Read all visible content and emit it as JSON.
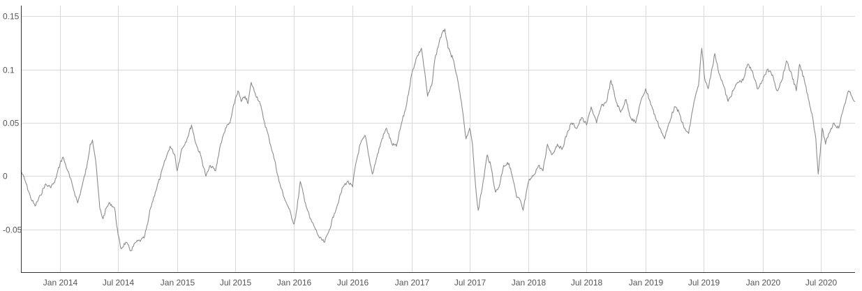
{
  "chart_data": {
    "type": "line",
    "title": "",
    "xlabel": "",
    "ylabel": "",
    "grid": true,
    "legend": "none",
    "x_range": [
      "2013-09-01",
      "2020-10-15"
    ],
    "ylim": [
      -0.09,
      0.16
    ],
    "y_ticks": [
      {
        "value": 0.15,
        "label": "0.15"
      },
      {
        "value": 0.1,
        "label": "0.1"
      },
      {
        "value": 0.05,
        "label": "0.05"
      },
      {
        "value": 0,
        "label": "0"
      },
      {
        "value": -0.05,
        "label": "-0.05"
      }
    ],
    "x_ticks": [
      {
        "date": "2014-01-01",
        "label": "Jan 2014"
      },
      {
        "date": "2014-07-01",
        "label": "Jul 2014"
      },
      {
        "date": "2015-01-01",
        "label": "Jan 2015"
      },
      {
        "date": "2015-07-01",
        "label": "Jul 2015"
      },
      {
        "date": "2016-01-01",
        "label": "Jan 2016"
      },
      {
        "date": "2016-07-01",
        "label": "Jul 2016"
      },
      {
        "date": "2017-01-01",
        "label": "Jan 2017"
      },
      {
        "date": "2017-07-01",
        "label": "Jul 2017"
      },
      {
        "date": "2018-01-01",
        "label": "Jan 2018"
      },
      {
        "date": "2018-07-01",
        "label": "Jul 2018"
      },
      {
        "date": "2019-01-01",
        "label": "Jan 2019"
      },
      {
        "date": "2019-07-01",
        "label": "Jul 2019"
      },
      {
        "date": "2020-01-01",
        "label": "Jan 2020"
      },
      {
        "date": "2020-07-01",
        "label": "Jul 2020"
      }
    ],
    "series": [
      {
        "color": "#8c8c8c",
        "points": [
          [
            "2013-09-01",
            0.005
          ],
          [
            "2013-09-15",
            -0.005
          ],
          [
            "2013-10-01",
            -0.02
          ],
          [
            "2013-10-15",
            -0.028
          ],
          [
            "2013-11-01",
            -0.018
          ],
          [
            "2013-11-15",
            -0.008
          ],
          [
            "2013-12-01",
            -0.01
          ],
          [
            "2013-12-15",
            -0.006
          ],
          [
            "2014-01-01",
            0.012
          ],
          [
            "2014-01-10",
            0.018
          ],
          [
            "2014-01-25",
            0.005
          ],
          [
            "2014-02-10",
            -0.01
          ],
          [
            "2014-02-25",
            -0.025
          ],
          [
            "2014-03-10",
            -0.01
          ],
          [
            "2014-03-25",
            0.008
          ],
          [
            "2014-04-05",
            0.03
          ],
          [
            "2014-04-12",
            0.034
          ],
          [
            "2014-04-22",
            0.015
          ],
          [
            "2014-05-05",
            -0.03
          ],
          [
            "2014-05-15",
            -0.04
          ],
          [
            "2014-05-25",
            -0.03
          ],
          [
            "2014-06-05",
            -0.025
          ],
          [
            "2014-06-20",
            -0.03
          ],
          [
            "2014-07-01",
            -0.055
          ],
          [
            "2014-07-10",
            -0.068
          ],
          [
            "2014-07-25",
            -0.062
          ],
          [
            "2014-08-10",
            -0.07
          ],
          [
            "2014-08-25",
            -0.062
          ],
          [
            "2014-09-10",
            -0.06
          ],
          [
            "2014-09-20",
            -0.058
          ],
          [
            "2014-10-01",
            -0.045
          ],
          [
            "2014-10-10",
            -0.03
          ],
          [
            "2014-10-25",
            -0.015
          ],
          [
            "2014-11-10",
            0.0
          ],
          [
            "2014-11-25",
            0.015
          ],
          [
            "2014-12-10",
            0.028
          ],
          [
            "2014-12-25",
            0.02
          ],
          [
            "2015-01-01",
            0.005
          ],
          [
            "2015-01-15",
            0.025
          ],
          [
            "2015-02-01",
            0.035
          ],
          [
            "2015-02-15",
            0.048
          ],
          [
            "2015-03-01",
            0.03
          ],
          [
            "2015-03-15",
            0.02
          ],
          [
            "2015-04-01",
            0.0
          ],
          [
            "2015-04-15",
            0.01
          ],
          [
            "2015-05-01",
            0.005
          ],
          [
            "2015-05-15",
            0.028
          ],
          [
            "2015-06-01",
            0.045
          ],
          [
            "2015-06-15",
            0.05
          ],
          [
            "2015-07-01",
            0.072
          ],
          [
            "2015-07-10",
            0.08
          ],
          [
            "2015-07-20",
            0.07
          ],
          [
            "2015-08-01",
            0.075
          ],
          [
            "2015-08-10",
            0.068
          ],
          [
            "2015-08-20",
            0.088
          ],
          [
            "2015-09-01",
            0.078
          ],
          [
            "2015-09-15",
            0.07
          ],
          [
            "2015-10-01",
            0.05
          ],
          [
            "2015-10-15",
            0.035
          ],
          [
            "2015-11-01",
            0.015
          ],
          [
            "2015-11-15",
            -0.005
          ],
          [
            "2015-12-01",
            -0.02
          ],
          [
            "2015-12-15",
            -0.03
          ],
          [
            "2016-01-01",
            -0.045
          ],
          [
            "2016-01-10",
            -0.03
          ],
          [
            "2016-01-20",
            -0.005
          ],
          [
            "2016-02-05",
            -0.025
          ],
          [
            "2016-02-20",
            -0.04
          ],
          [
            "2016-03-05",
            -0.048
          ],
          [
            "2016-03-20",
            -0.058
          ],
          [
            "2016-04-05",
            -0.062
          ],
          [
            "2016-04-20",
            -0.05
          ],
          [
            "2016-05-05",
            -0.035
          ],
          [
            "2016-05-20",
            -0.022
          ],
          [
            "2016-06-01",
            -0.01
          ],
          [
            "2016-06-15",
            -0.005
          ],
          [
            "2016-07-01",
            -0.01
          ],
          [
            "2016-07-10",
            0.01
          ],
          [
            "2016-07-25",
            0.03
          ],
          [
            "2016-08-10",
            0.038
          ],
          [
            "2016-08-20",
            0.02
          ],
          [
            "2016-09-01",
            0.002
          ],
          [
            "2016-09-15",
            0.018
          ],
          [
            "2016-10-01",
            0.035
          ],
          [
            "2016-10-15",
            0.045
          ],
          [
            "2016-11-01",
            0.03
          ],
          [
            "2016-11-15",
            0.028
          ],
          [
            "2016-12-01",
            0.05
          ],
          [
            "2016-12-15",
            0.065
          ],
          [
            "2017-01-01",
            0.095
          ],
          [
            "2017-01-15",
            0.11
          ],
          [
            "2017-02-01",
            0.12
          ],
          [
            "2017-02-10",
            0.1
          ],
          [
            "2017-02-20",
            0.075
          ],
          [
            "2017-03-05",
            0.085
          ],
          [
            "2017-03-15",
            0.11
          ],
          [
            "2017-04-01",
            0.13
          ],
          [
            "2017-04-15",
            0.138
          ],
          [
            "2017-04-25",
            0.12
          ],
          [
            "2017-05-10",
            0.11
          ],
          [
            "2017-05-25",
            0.09
          ],
          [
            "2017-06-10",
            0.06
          ],
          [
            "2017-06-20",
            0.035
          ],
          [
            "2017-07-01",
            0.045
          ],
          [
            "2017-07-10",
            0.03
          ],
          [
            "2017-07-20",
            -0.01
          ],
          [
            "2017-07-28",
            -0.032
          ],
          [
            "2017-08-10",
            -0.01
          ],
          [
            "2017-08-25",
            0.02
          ],
          [
            "2017-09-05",
            0.01
          ],
          [
            "2017-09-20",
            -0.015
          ],
          [
            "2017-10-01",
            -0.01
          ],
          [
            "2017-10-15",
            0.01
          ],
          [
            "2017-11-01",
            0.012
          ],
          [
            "2017-11-15",
            -0.005
          ],
          [
            "2017-11-25",
            -0.02
          ],
          [
            "2017-12-05",
            -0.022
          ],
          [
            "2017-12-15",
            -0.032
          ],
          [
            "2018-01-01",
            -0.005
          ],
          [
            "2018-01-15",
            0.0
          ],
          [
            "2018-02-01",
            0.01
          ],
          [
            "2018-02-15",
            0.005
          ],
          [
            "2018-03-01",
            0.03
          ],
          [
            "2018-03-15",
            0.02
          ],
          [
            "2018-04-01",
            0.03
          ],
          [
            "2018-04-15",
            0.025
          ],
          [
            "2018-05-01",
            0.04
          ],
          [
            "2018-05-15",
            0.05
          ],
          [
            "2018-06-01",
            0.045
          ],
          [
            "2018-06-15",
            0.055
          ],
          [
            "2018-07-01",
            0.048
          ],
          [
            "2018-07-15",
            0.065
          ],
          [
            "2018-08-01",
            0.05
          ],
          [
            "2018-08-15",
            0.065
          ],
          [
            "2018-09-01",
            0.07
          ],
          [
            "2018-09-15",
            0.09
          ],
          [
            "2018-10-01",
            0.07
          ],
          [
            "2018-10-15",
            0.06
          ],
          [
            "2018-11-01",
            0.072
          ],
          [
            "2018-11-15",
            0.055
          ],
          [
            "2018-12-01",
            0.05
          ],
          [
            "2018-12-15",
            0.068
          ],
          [
            "2019-01-01",
            0.082
          ],
          [
            "2019-01-15",
            0.07
          ],
          [
            "2019-02-01",
            0.055
          ],
          [
            "2019-02-15",
            0.045
          ],
          [
            "2019-03-01",
            0.035
          ],
          [
            "2019-03-15",
            0.05
          ],
          [
            "2019-04-01",
            0.065
          ],
          [
            "2019-04-15",
            0.06
          ],
          [
            "2019-05-01",
            0.045
          ],
          [
            "2019-05-15",
            0.04
          ],
          [
            "2019-06-01",
            0.07
          ],
          [
            "2019-06-15",
            0.085
          ],
          [
            "2019-06-25",
            0.12
          ],
          [
            "2019-07-05",
            0.09
          ],
          [
            "2019-07-15",
            0.082
          ],
          [
            "2019-07-25",
            0.098
          ],
          [
            "2019-08-05",
            0.115
          ],
          [
            "2019-08-15",
            0.1
          ],
          [
            "2019-09-01",
            0.085
          ],
          [
            "2019-09-15",
            0.07
          ],
          [
            "2019-10-01",
            0.08
          ],
          [
            "2019-10-15",
            0.088
          ],
          [
            "2019-11-01",
            0.09
          ],
          [
            "2019-11-15",
            0.105
          ],
          [
            "2019-12-01",
            0.098
          ],
          [
            "2019-12-15",
            0.082
          ],
          [
            "2020-01-01",
            0.09
          ],
          [
            "2020-01-15",
            0.1
          ],
          [
            "2020-02-01",
            0.095
          ],
          [
            "2020-02-15",
            0.08
          ],
          [
            "2020-03-01",
            0.09
          ],
          [
            "2020-03-15",
            0.108
          ],
          [
            "2020-04-01",
            0.095
          ],
          [
            "2020-04-15",
            0.08
          ],
          [
            "2020-04-25",
            0.105
          ],
          [
            "2020-05-10",
            0.09
          ],
          [
            "2020-05-25",
            0.07
          ],
          [
            "2020-06-05",
            0.055
          ],
          [
            "2020-06-15",
            0.035
          ],
          [
            "2020-06-22",
            0.002
          ],
          [
            "2020-06-28",
            0.02
          ],
          [
            "2020-07-05",
            0.045
          ],
          [
            "2020-07-15",
            0.03
          ],
          [
            "2020-07-25",
            0.04
          ],
          [
            "2020-08-10",
            0.05
          ],
          [
            "2020-08-25",
            0.045
          ],
          [
            "2020-09-10",
            0.065
          ],
          [
            "2020-09-25",
            0.08
          ],
          [
            "2020-10-05",
            0.075
          ],
          [
            "2020-10-15",
            0.07
          ]
        ]
      }
    ]
  }
}
